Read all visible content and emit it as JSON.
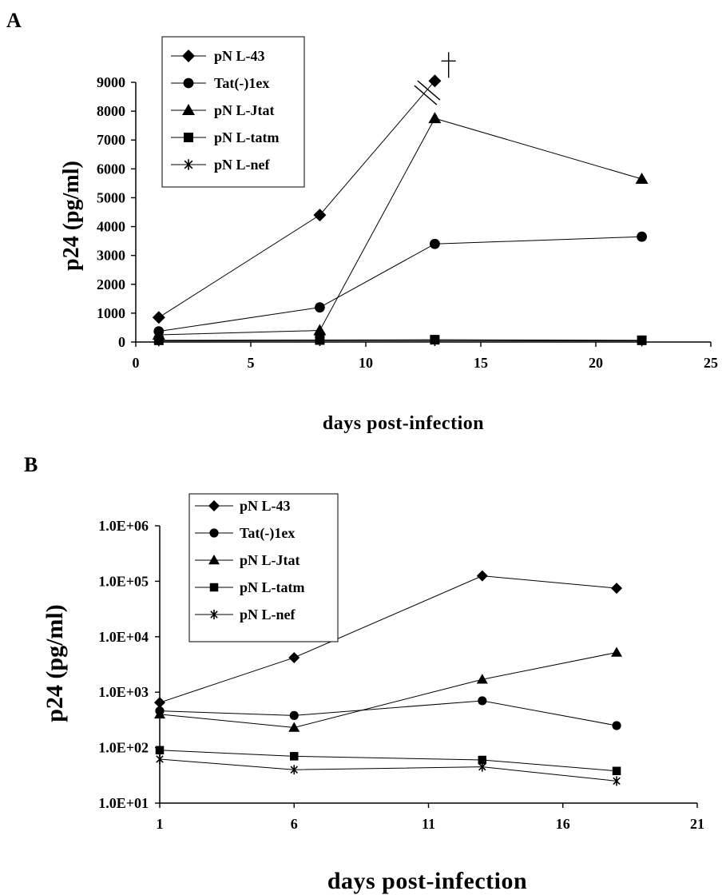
{
  "chart_data": [
    {
      "panel": "A",
      "type": "line",
      "xlabel": "days post-infection",
      "ylabel": "p24 (pg/ml)",
      "xlim": [
        0,
        25
      ],
      "ylim": [
        0,
        9000
      ],
      "xticks": [
        "0",
        "5",
        "10",
        "15",
        "20",
        "25"
      ],
      "yticks": [
        "0",
        "1000",
        "2000",
        "3000",
        "4000",
        "5000",
        "6000",
        "7000",
        "8000",
        "9000"
      ],
      "yscale": "linear",
      "grid": false,
      "legend_position": "top-left",
      "series": [
        {
          "name": "pN L-43",
          "marker": "diamond",
          "x": [
            1,
            8,
            13
          ],
          "y": [
            850,
            4400,
            9050
          ]
        },
        {
          "name": "Tat(-)1ex",
          "marker": "circle",
          "x": [
            1,
            8,
            13,
            22
          ],
          "y": [
            370,
            1200,
            3400,
            3650
          ]
        },
        {
          "name": "pN L-Jtat",
          "marker": "triangle",
          "x": [
            1,
            8,
            13,
            22
          ],
          "y": [
            250,
            400,
            7750,
            5650
          ]
        },
        {
          "name": "pN L-tatm",
          "marker": "square",
          "x": [
            1,
            8,
            13,
            22
          ],
          "y": [
            60,
            70,
            80,
            60
          ]
        },
        {
          "name": "pN L-nef",
          "marker": "star",
          "x": [
            1,
            8,
            13,
            22
          ],
          "y": [
            40,
            50,
            50,
            40
          ]
        }
      ],
      "annotations": [
        {
          "kind": "axis-break",
          "x": 12.6,
          "y": 8500
        },
        {
          "kind": "dagger",
          "x": 13.6,
          "y": 9600
        }
      ]
    },
    {
      "panel": "B",
      "type": "line",
      "xlabel": "days post-infection",
      "ylabel": "p24 (pg/ml)",
      "xlim": [
        1,
        21
      ],
      "ylim": [
        10,
        1000000
      ],
      "xticks": [
        "1",
        "6",
        "11",
        "16",
        "21"
      ],
      "yticks": [
        "1.0E+01",
        "1.0E+02",
        "1.0E+03",
        "1.0E+04",
        "1.0E+05",
        "1.0E+06"
      ],
      "yscale": "log",
      "grid": false,
      "legend_position": "top-left",
      "series": [
        {
          "name": "pN L-43",
          "marker": "diamond",
          "x": [
            1,
            6,
            13,
            18
          ],
          "y": [
            650,
            4200,
            125000,
            75000
          ]
        },
        {
          "name": "Tat(-)1ex",
          "marker": "circle",
          "x": [
            1,
            6,
            13,
            18
          ],
          "y": [
            460,
            380,
            700,
            250
          ]
        },
        {
          "name": "pN L-Jtat",
          "marker": "triangle",
          "x": [
            1,
            6,
            13,
            18
          ],
          "y": [
            400,
            230,
            1700,
            5200
          ]
        },
        {
          "name": "pN L-tatm",
          "marker": "square",
          "x": [
            1,
            6,
            13,
            18
          ],
          "y": [
            90,
            70,
            60,
            38
          ]
        },
        {
          "name": "pN L-nef",
          "marker": "star",
          "x": [
            1,
            6,
            13,
            18
          ],
          "y": [
            62,
            40,
            45,
            25
          ]
        }
      ]
    }
  ]
}
